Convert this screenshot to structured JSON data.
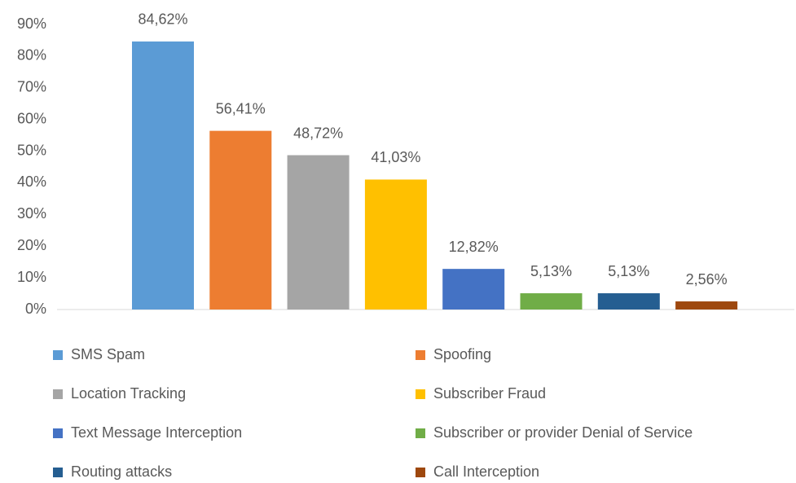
{
  "chart_data": {
    "type": "bar",
    "ylim": [
      0,
      90
    ],
    "yticks": [
      {
        "value": 0,
        "label": "0%"
      },
      {
        "value": 10,
        "label": "10%"
      },
      {
        "value": 20,
        "label": "20%"
      },
      {
        "value": 30,
        "label": "30%"
      },
      {
        "value": 40,
        "label": "40%"
      },
      {
        "value": 50,
        "label": "50%"
      },
      {
        "value": 60,
        "label": "60%"
      },
      {
        "value": 70,
        "label": "70%"
      },
      {
        "value": 80,
        "label": "80%"
      },
      {
        "value": 90,
        "label": "90%"
      }
    ],
    "grid": false,
    "series": [
      {
        "name": "SMS Spam",
        "color": "#5b9bd5",
        "values": [
          84.62
        ],
        "value_labels": [
          "84,62%"
        ]
      },
      {
        "name": "Spoofing",
        "color": "#ed7d31",
        "values": [
          56.41
        ],
        "value_labels": [
          "56,41%"
        ]
      },
      {
        "name": "Location Tracking",
        "color": "#a5a5a5",
        "values": [
          48.72
        ],
        "value_labels": [
          "48,72%"
        ]
      },
      {
        "name": "Subscriber Fraud",
        "color": "#ffc000",
        "values": [
          41.03
        ],
        "value_labels": [
          "41,03%"
        ]
      },
      {
        "name": "Text Message Interception",
        "color": "#4472c4",
        "values": [
          12.82
        ],
        "value_labels": [
          "12,82%"
        ]
      },
      {
        "name": "Subscriber or provider Denial of Service",
        "color": "#70ad47",
        "values": [
          5.13
        ],
        "value_labels": [
          "5,13%"
        ]
      },
      {
        "name": "Routing attacks",
        "color": "#255e91",
        "values": [
          5.13
        ],
        "value_labels": [
          "5,13%"
        ]
      },
      {
        "name": "Call Interception",
        "color": "#9e480e",
        "values": [
          2.56
        ],
        "value_labels": [
          "2,56%"
        ]
      }
    ]
  }
}
